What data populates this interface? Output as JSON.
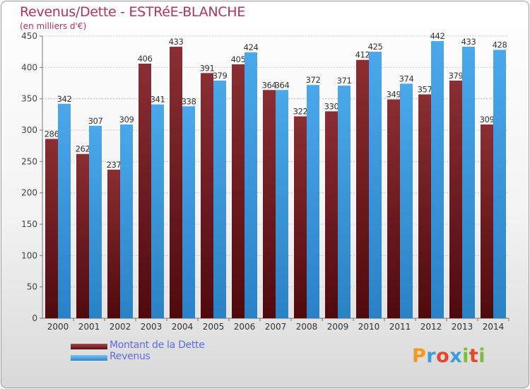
{
  "chart_data": {
    "type": "bar",
    "title": "Revenus/Dette - ESTRéE-BLANCHE",
    "subtitle": "(en milliers d'€)",
    "categories": [
      "2000",
      "2001",
      "2002",
      "2003",
      "2004",
      "2005",
      "2006",
      "2007",
      "2008",
      "2009",
      "2010",
      "2011",
      "2012",
      "2013",
      "2014"
    ],
    "series": [
      {
        "name": "Montant de la Dette",
        "color": "#7a1c20",
        "values": [
          286,
          262,
          237,
          406,
          433,
          391,
          405,
          364,
          322,
          330,
          412,
          349,
          357,
          379,
          309
        ]
      },
      {
        "name": "Revenus",
        "color": "#3f9fe0",
        "values": [
          342,
          307,
          309,
          341,
          338,
          379,
          424,
          364,
          372,
          371,
          425,
          374,
          442,
          433,
          428
        ]
      }
    ],
    "yticks": [
      0,
      50,
      100,
      150,
      200,
      250,
      300,
      350,
      400,
      450
    ],
    "ylim": [
      0,
      450
    ],
    "grid": true,
    "legend_position": "bottom-left"
  },
  "logo": {
    "text": "Proxiti",
    "letters": [
      "P",
      "r",
      "o",
      "x",
      "i",
      "t",
      "i"
    ],
    "colors": [
      "#f29a1f",
      "#3b9be0",
      "#e8452a",
      "#3b9be0",
      "#7bbf3a",
      "#e8452a",
      "#7bbf3a"
    ]
  }
}
